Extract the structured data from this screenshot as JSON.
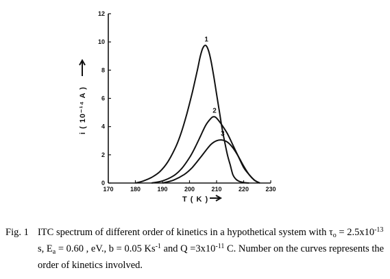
{
  "chart_data": {
    "type": "line",
    "title": "",
    "xlabel": "T ( K )",
    "ylabel": "i ( 10⁻¹⁴ A )",
    "xlim": [
      170,
      230
    ],
    "ylim": [
      0,
      12
    ],
    "x_ticks": [
      170,
      180,
      190,
      200,
      210,
      220,
      230
    ],
    "x_tick_labels": [
      "170",
      "180",
      "190",
      "200",
      "210",
      "220",
      "230"
    ],
    "y_ticks": [
      0,
      2,
      4,
      6,
      8,
      10,
      12
    ],
    "y_tick_labels": [
      "0",
      "2",
      "4",
      "6",
      "8",
      "10",
      "12"
    ],
    "grid": false,
    "legend": "none",
    "series": [
      {
        "name": "1",
        "x": [
          180,
          183,
          186,
          189,
          192,
          195,
          197,
          199,
          201,
          203,
          204,
          205,
          206,
          207,
          208,
          209,
          210,
          211,
          212,
          213,
          214,
          215,
          216,
          217,
          218,
          219,
          220,
          222
        ],
        "y": [
          0,
          0.15,
          0.4,
          0.8,
          1.5,
          2.6,
          3.6,
          4.9,
          6.4,
          8.1,
          9.0,
          9.6,
          9.75,
          9.4,
          8.6,
          7.5,
          6.3,
          5.1,
          3.9,
          2.9,
          2.0,
          1.3,
          0.6,
          0.3,
          0.15,
          0.08,
          0.04,
          0
        ]
      },
      {
        "name": "2",
        "x": [
          186,
          190,
          194,
          197,
          200,
          202,
          204,
          206,
          208,
          209,
          210,
          212,
          214,
          216,
          218,
          220,
          222,
          224,
          226
        ],
        "y": [
          0,
          0.15,
          0.5,
          1.0,
          1.8,
          2.5,
          3.3,
          4.1,
          4.6,
          4.7,
          4.6,
          4.1,
          3.5,
          2.7,
          1.9,
          1.1,
          0.6,
          0.2,
          0
        ]
      },
      {
        "name": "3",
        "x": [
          190,
          194,
          198,
          201,
          204,
          206,
          208,
          210,
          212,
          214,
          216,
          218,
          220,
          222,
          224,
          226
        ],
        "y": [
          0,
          0.2,
          0.6,
          1.1,
          1.8,
          2.3,
          2.75,
          3.0,
          3.05,
          2.9,
          2.5,
          1.9,
          1.2,
          0.6,
          0.2,
          0
        ]
      }
    ]
  },
  "caption": {
    "label": "Fig. 1",
    "text_1": "ITC spectrum of different order of kinetics in a hypothetical   system with τ",
    "tau_sub": "o",
    "text_2": " = 2.5x10",
    "exp_1": "-13",
    "text_3": " s, E",
    "ea_sub": "a",
    "text_4": " = 0.60 , eV., b = 0.05 Ks",
    "exp_2": "-1",
    "text_5": " and Q =3x10",
    "exp_3": "-11",
    "text_6": " C. Number on the curves represents the order of kinetics involved."
  }
}
